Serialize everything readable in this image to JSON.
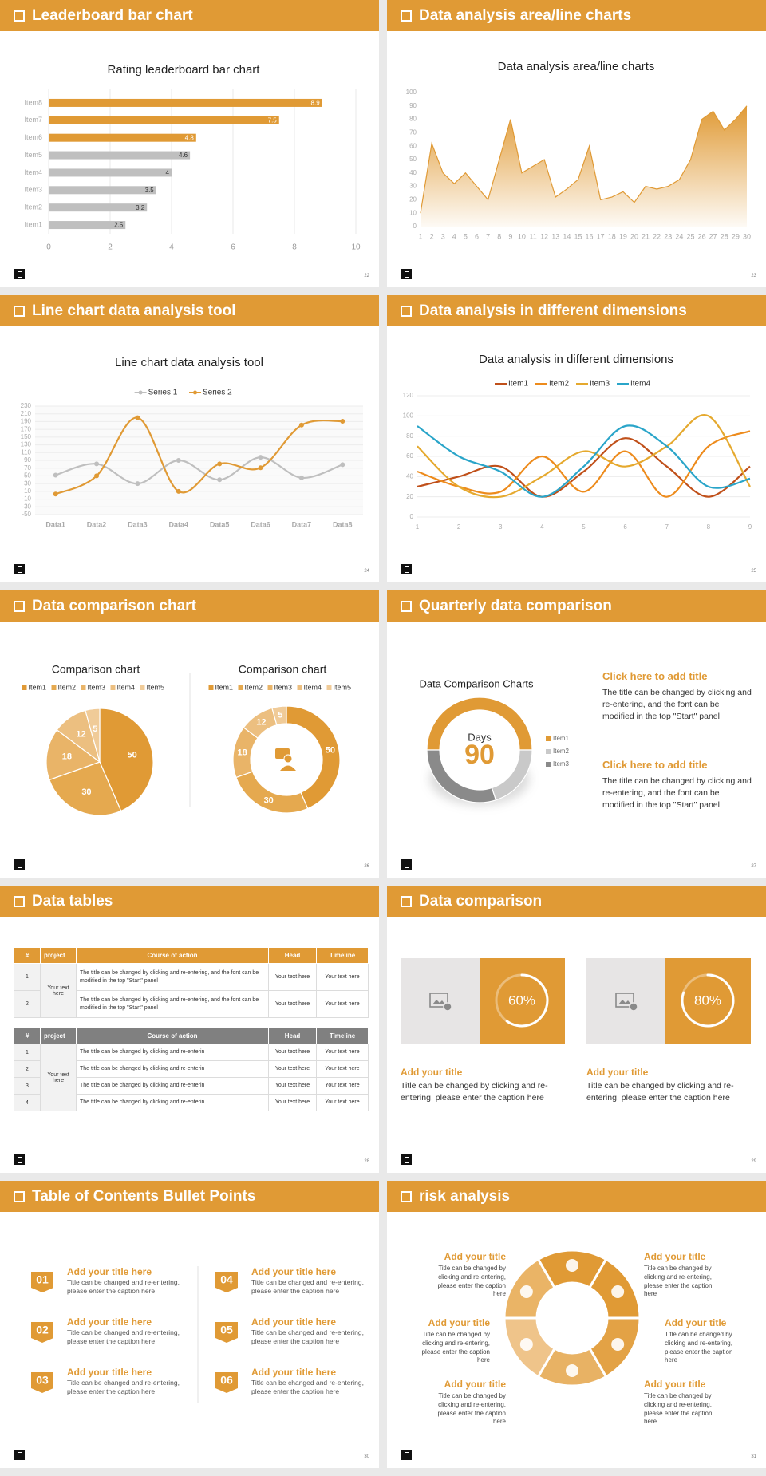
{
  "chart_data": [
    {
      "type": "bar",
      "title": "Rating leaderboard bar chart",
      "categories": [
        "Item1",
        "Item2",
        "Item3",
        "Item4",
        "Item5",
        "Item6",
        "Item7",
        "Item8"
      ],
      "values": [
        2.5,
        3.2,
        3.5,
        4,
        4.6,
        4.8,
        7.5,
        8.9
      ],
      "colors": [
        "#bfbfbf",
        "#bfbfbf",
        "#bfbfbf",
        "#bfbfbf",
        "#bfbfbf",
        "#e09a35",
        "#e09a35",
        "#e09a35"
      ],
      "xlim": [
        0,
        10
      ],
      "xticks": [
        0,
        2,
        4,
        6,
        8,
        10
      ],
      "grid": true
    },
    {
      "type": "area",
      "title": "Data analysis area/line charts",
      "x": [
        1,
        2,
        3,
        4,
        5,
        6,
        7,
        8,
        9,
        10,
        11,
        12,
        13,
        14,
        15,
        16,
        17,
        18,
        19,
        20,
        21,
        22,
        23,
        24,
        25,
        26,
        27,
        28,
        29,
        30
      ],
      "values": [
        10,
        62,
        40,
        32,
        40,
        30,
        20,
        50,
        80,
        40,
        45,
        50,
        22,
        28,
        35,
        60,
        20,
        22,
        26,
        18,
        30,
        28,
        30,
        35,
        50,
        80,
        86,
        72,
        80,
        90
      ],
      "color": "#e09a35",
      "xlim": [
        1,
        30
      ],
      "ylim": [
        0,
        100
      ],
      "yticks": [
        0,
        10,
        20,
        30,
        40,
        50,
        60,
        70,
        80,
        90,
        100
      ]
    },
    {
      "type": "line",
      "title": "Line chart data analysis tool",
      "categories": [
        "Data1",
        "Data2",
        "Data3",
        "Data4",
        "Data5",
        "Data6",
        "Data7",
        "Data8"
      ],
      "series": [
        {
          "name": "Series 1",
          "color": "#bfbfbf",
          "values": [
            52,
            81,
            30,
            90,
            40,
            98,
            45,
            79
          ]
        },
        {
          "name": "Series 2",
          "color": "#e09a35",
          "values": [
            3,
            50,
            200,
            10,
            81,
            71,
            181,
            191
          ]
        }
      ],
      "ylim": [
        -50,
        230
      ],
      "yticks": [
        -50,
        -30,
        -10,
        10,
        30,
        50,
        70,
        90,
        110,
        130,
        150,
        170,
        190,
        210,
        230
      ],
      "grid": true,
      "markers": true,
      "smooth": true,
      "legend": "top"
    },
    {
      "type": "line",
      "title": "Data analysis in different dimensions",
      "x": [
        1,
        2,
        3,
        4,
        5,
        6,
        7,
        8,
        9
      ],
      "series": [
        {
          "name": "Item1",
          "color": "#c0501a",
          "values": [
            30,
            40,
            50,
            20,
            45,
            78,
            50,
            20,
            50
          ]
        },
        {
          "name": "Item2",
          "color": "#ed8b1c",
          "values": [
            45,
            30,
            25,
            60,
            25,
            65,
            20,
            70,
            85
          ]
        },
        {
          "name": "Item3",
          "color": "#e5a92e",
          "values": [
            70,
            30,
            20,
            40,
            65,
            50,
            70,
            100,
            30
          ]
        },
        {
          "name": "Item4",
          "color": "#2aa5c9",
          "values": [
            90,
            60,
            45,
            20,
            50,
            90,
            70,
            30,
            38
          ]
        }
      ],
      "xlim": [
        1,
        9
      ],
      "ylim": [
        0,
        120
      ],
      "yticks": [
        0,
        20,
        40,
        60,
        80,
        100,
        120
      ],
      "grid": true,
      "markers": false,
      "smooth": true,
      "legend": "top"
    },
    {
      "type": "pie",
      "title": "Comparison chart",
      "categories": [
        "Item1",
        "Item2",
        "Item3",
        "Item4",
        "Item5"
      ],
      "values": [
        50,
        30,
        18,
        12,
        5
      ],
      "colors": [
        "#e09a35",
        "#e5a94f",
        "#e9b468",
        "#ecbf80",
        "#f0cb98"
      ],
      "legend": "top",
      "data_labels": true
    },
    {
      "type": "donut",
      "title": "Comparison chart",
      "categories": [
        "Item1",
        "Item2",
        "Item3",
        "Item4",
        "Item5"
      ],
      "values": [
        50,
        30,
        18,
        12,
        5
      ],
      "colors": [
        "#e09a35",
        "#e5a94f",
        "#e9b468",
        "#ecbf80",
        "#f0cb98"
      ],
      "legend": "top",
      "data_labels": true
    },
    {
      "type": "donut",
      "title": "Data Comparison Charts",
      "categories": [
        "Item1",
        "Item2",
        "Item3"
      ],
      "values": [
        50,
        20,
        30
      ],
      "colors": [
        "#e09a35",
        "#c9c9c9",
        "#8a8a8a"
      ],
      "legend": "right",
      "data_labels": false,
      "center_label": "Days",
      "center_value": 90
    },
    {
      "type": "gauge",
      "values": [
        60
      ],
      "value_labels": [
        "60%"
      ]
    },
    {
      "type": "gauge",
      "values": [
        80
      ],
      "value_labels": [
        "80%"
      ]
    }
  ],
  "slides": [
    {
      "title": "Leaderboard bar chart",
      "page": 22
    },
    {
      "title": "Data analysis area/line charts",
      "page": 23
    },
    {
      "title": "Line chart data analysis tool",
      "page": 24
    },
    {
      "title": "Data analysis in different dimensions",
      "page": 25
    },
    {
      "title": "Data comparison chart",
      "page": 26
    },
    {
      "title": "Quarterly data comparison",
      "page": 27,
      "blocks": [
        {
          "heading": "Click here to add title",
          "text": "The title can be changed by clicking and re-entering, and the font can be modified in the top \"Start\" panel"
        },
        {
          "heading": "Click here to add title",
          "text": "The title can be changed by clicking and re-entering, and the font can be modified in the top \"Start\" panel"
        }
      ]
    },
    {
      "title": "Data tables",
      "page": 28,
      "tables": [
        {
          "header": [
            "#",
            "project",
            "Course of action",
            "Head",
            "Timeline"
          ],
          "project": "Your text here",
          "rows": [
            [
              1,
              "The title can be changed by clicking and re-entering, and the font can be modified in the top \"Start\" panel",
              "Your text here",
              "Your text here"
            ],
            [
              2,
              "The title can be changed by clicking and re-entering, and the font can be modified in the top \"Start\" panel",
              "Your text here",
              "Your text here"
            ]
          ]
        },
        {
          "header": [
            "#",
            "project",
            "Course of action",
            "Head",
            "Timeline"
          ],
          "project": "Your text here",
          "rows": [
            [
              1,
              "The title can be changed by clicking and re-enterin",
              "Your text here",
              "Your text here"
            ],
            [
              2,
              "The title can be changed by clicking and re-enterin",
              "Your text here",
              "Your text here"
            ],
            [
              3,
              "The title can be changed by clicking and re-enterin",
              "Your text here",
              "Your text here"
            ],
            [
              4,
              "The title can be changed by clicking and re-enterin",
              "Your text here",
              "Your text here"
            ]
          ]
        }
      ]
    },
    {
      "title": "Data comparison",
      "page": 29,
      "cards": [
        {
          "heading": "Add your title",
          "text": "Title can be changed by clicking and re-entering, please enter the caption here"
        },
        {
          "heading": "Add your title",
          "text": "Title can be changed by clicking and re-entering, please enter the caption here"
        }
      ]
    },
    {
      "title": "Table of Contents Bullet Points",
      "page": 30,
      "items": [
        {
          "number": "01",
          "heading": "Add your title here",
          "text": "Title can be changed and re-entering, please enter the caption here"
        },
        {
          "number": "02",
          "heading": "Add your title here",
          "text": "Title can be changed and re-entering, please enter the caption here"
        },
        {
          "number": "03",
          "heading": "Add your title here",
          "text": "Title can be changed and re-entering, please enter the caption here"
        },
        {
          "number": "04",
          "heading": "Add your title here",
          "text": "Title can be changed and re-entering, please enter the caption here"
        },
        {
          "number": "05",
          "heading": "Add your title here",
          "text": "Title can be changed and re-entering, please enter the caption here"
        },
        {
          "number": "06",
          "heading": "Add your title here",
          "text": "Title can be changed and re-entering, please enter the caption here"
        }
      ]
    },
    {
      "title": "risk analysis",
      "page": 31,
      "items": [
        {
          "heading": "Add your title",
          "text": "Title can be changed by clicking and re-entering, please enter the caption here"
        },
        {
          "heading": "Add your title",
          "text": "Title can be changed by clicking and re-entering, please enter the caption here"
        },
        {
          "heading": "Add your title",
          "text": "Title can be changed by clicking and re-entering, please enter the caption here"
        },
        {
          "heading": "Add your title",
          "text": "Title can be changed by clicking and re-entering, please enter the caption here"
        },
        {
          "heading": "Add your title",
          "text": "Title can be changed by clicking and re-entering, please enter the caption here"
        },
        {
          "heading": "Add your title",
          "text": "Title can be changed by clicking and re-entering, please enter the caption here"
        }
      ]
    }
  ]
}
